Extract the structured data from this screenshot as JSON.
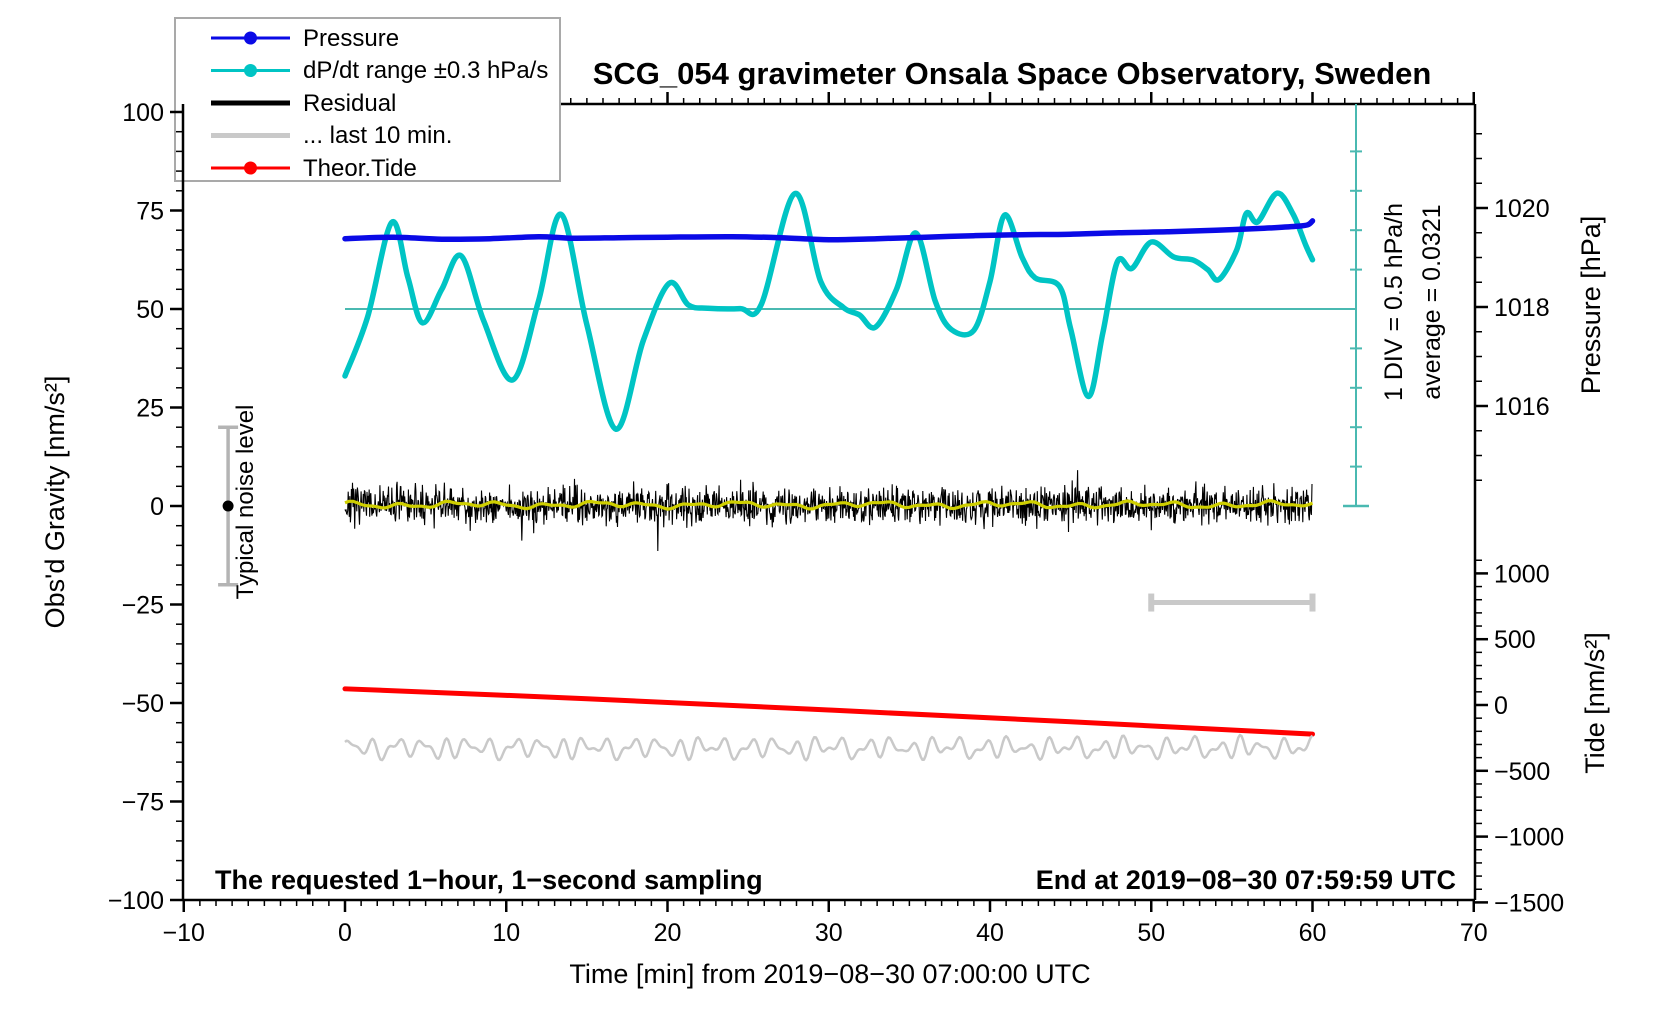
{
  "chart_data": {
    "type": "line",
    "title": "SCG_054 gravimeter Onsala Space Observatory, Sweden",
    "x_axis": {
      "label": "Time [min] from 2019−08−30 07:00:00 UTC",
      "range": [
        -10,
        70
      ],
      "major_ticks": [
        -10,
        0,
        10,
        20,
        30,
        40,
        50,
        60,
        70
      ],
      "minor_step": 1
    },
    "y_axis_gravity": {
      "label": "Obs'd Gravity [nm/s²]",
      "range": [
        -100,
        102
      ],
      "major_ticks": [
        100,
        75,
        50,
        25,
        0,
        -25,
        -50,
        -75,
        -100
      ],
      "minor_step": 5
    },
    "y_axis_pressure": {
      "label": "Pressure [hPa]",
      "major_ticks": [
        1020,
        1018,
        1016
      ],
      "minor_step": 0.5,
      "minor_range": [
        1014,
        1021.5
      ]
    },
    "y_axis_tide": {
      "label": "Tide [nm/s²]",
      "major_ticks": [
        1000,
        500,
        0,
        -500,
        -1000,
        -1500
      ],
      "minor_step": 100,
      "minor_range": [
        -1500,
        1100
      ]
    },
    "series": {
      "pressure": {
        "name": "Pressure",
        "units": "hPa",
        "color": "#0a0ae6",
        "points": [
          [
            0,
            1019.38
          ],
          [
            3,
            1019.41
          ],
          [
            6,
            1019.37
          ],
          [
            9,
            1019.38
          ],
          [
            12,
            1019.42
          ],
          [
            14,
            1019.39
          ],
          [
            17,
            1019.4
          ],
          [
            20,
            1019.41
          ],
          [
            24,
            1019.42
          ],
          [
            27,
            1019.4
          ],
          [
            30,
            1019.36
          ],
          [
            33,
            1019.38
          ],
          [
            36,
            1019.41
          ],
          [
            39,
            1019.44
          ],
          [
            42,
            1019.46
          ],
          [
            45,
            1019.47
          ],
          [
            48,
            1019.5
          ],
          [
            51,
            1019.52
          ],
          [
            54,
            1019.55
          ],
          [
            57,
            1019.59
          ],
          [
            59,
            1019.63
          ],
          [
            59.7,
            1019.66
          ],
          [
            60,
            1019.74
          ]
        ]
      },
      "dpdt": {
        "name": "dP/dt range ±0.3 hPa/s",
        "units": "gravity-axis equivalent (nm/s²)",
        "color": "#00c4c4",
        "points": [
          [
            0,
            33
          ],
          [
            1.4,
            48
          ],
          [
            2.9,
            72
          ],
          [
            3.9,
            58
          ],
          [
            4.8,
            46.5
          ],
          [
            6,
            55
          ],
          [
            7.2,
            63.5
          ],
          [
            8.6,
            47
          ],
          [
            10.4,
            32
          ],
          [
            12,
            52
          ],
          [
            13.4,
            74
          ],
          [
            15,
            46
          ],
          [
            16.8,
            19.5
          ],
          [
            18.5,
            42
          ],
          [
            20.1,
            56.5
          ],
          [
            21.3,
            51
          ],
          [
            22.5,
            50.2
          ],
          [
            24.5,
            50.1
          ],
          [
            25.8,
            51
          ],
          [
            27.9,
            79.3
          ],
          [
            29.5,
            57
          ],
          [
            30.9,
            50.4
          ],
          [
            31.9,
            48.5
          ],
          [
            32.9,
            45.4
          ],
          [
            34.2,
            55
          ],
          [
            35.4,
            69.3
          ],
          [
            36.6,
            52
          ],
          [
            37.6,
            44.8
          ],
          [
            39,
            44.6
          ],
          [
            40,
            57
          ],
          [
            40.9,
            73.8
          ],
          [
            42,
            63
          ],
          [
            42.8,
            57.9
          ],
          [
            44.3,
            55.8
          ],
          [
            45,
            45
          ],
          [
            46.1,
            27.8
          ],
          [
            47,
            44
          ],
          [
            47.9,
            62
          ],
          [
            48.8,
            60.3
          ],
          [
            50,
            67
          ],
          [
            51.4,
            63.2
          ],
          [
            52.6,
            62.4
          ],
          [
            53.5,
            60
          ],
          [
            54.2,
            57.5
          ],
          [
            55.3,
            65
          ],
          [
            55.9,
            74.3
          ],
          [
            56.6,
            72.1
          ],
          [
            57.8,
            79.4
          ],
          [
            58.8,
            74
          ],
          [
            59.6,
            66
          ],
          [
            60,
            62.5
          ]
        ]
      },
      "dpdt_average": {
        "value_on_gravity_axis": 50,
        "label": "average = 0.0321",
        "scale_label": "1 DIV = 0.5 hPa/h",
        "color": "#4ab9b1"
      },
      "theor_tide": {
        "name": "Theor.Tide",
        "units": "nm/s² (tide axis)",
        "color": "#ff0000",
        "points": [
          [
            0,
            123
          ],
          [
            15,
            48
          ],
          [
            30,
            -38
          ],
          [
            45,
            -128
          ],
          [
            60,
            -221
          ]
        ]
      },
      "residual": {
        "name": "Residual",
        "color": "#000000",
        "center": 0,
        "std": 2.4,
        "n_points": 1800,
        "seed": 7
      },
      "residual_smooth": {
        "name": "residual smoothed",
        "color": "#cfcf00",
        "center": 0.3,
        "amplitude": 0.9
      },
      "last10": {
        "name": "... last 10 min.",
        "color": "#c9c9c9",
        "center": -61.4,
        "amplitude": 3,
        "t_range": [
          0,
          60
        ]
      },
      "last10_bar": {
        "t_range": [
          50,
          60
        ],
        "value_on_gravity_axis": -24.5,
        "color": "#c9c9c9"
      },
      "noise_bar": {
        "label": "Typical noise level",
        "t": -7.25,
        "center": 0,
        "half_span": 20,
        "bar_color": "#b4b4b4",
        "dot_color": "#000000"
      }
    },
    "annotations": {
      "sampling": "The requested 1−hour, 1−second sampling",
      "end_time": "End at 2019−08−30 07:59:59 UTC"
    }
  },
  "legend": {
    "items": [
      {
        "label": "Pressure",
        "color": "#0a0ae6",
        "marker": true,
        "width": 3
      },
      {
        "label": "dP/dt range ±0.3 hPa/s",
        "color": "#00c4c4",
        "marker": true,
        "width": 3
      },
      {
        "label": "Residual",
        "color": "#000000",
        "marker": false,
        "width": 5
      },
      {
        "label": "... last 10 min.",
        "color": "#c9c9c9",
        "marker": false,
        "width": 5
      },
      {
        "label": "Theor.Tide",
        "color": "#ff0000",
        "marker": true,
        "width": 3
      }
    ]
  }
}
